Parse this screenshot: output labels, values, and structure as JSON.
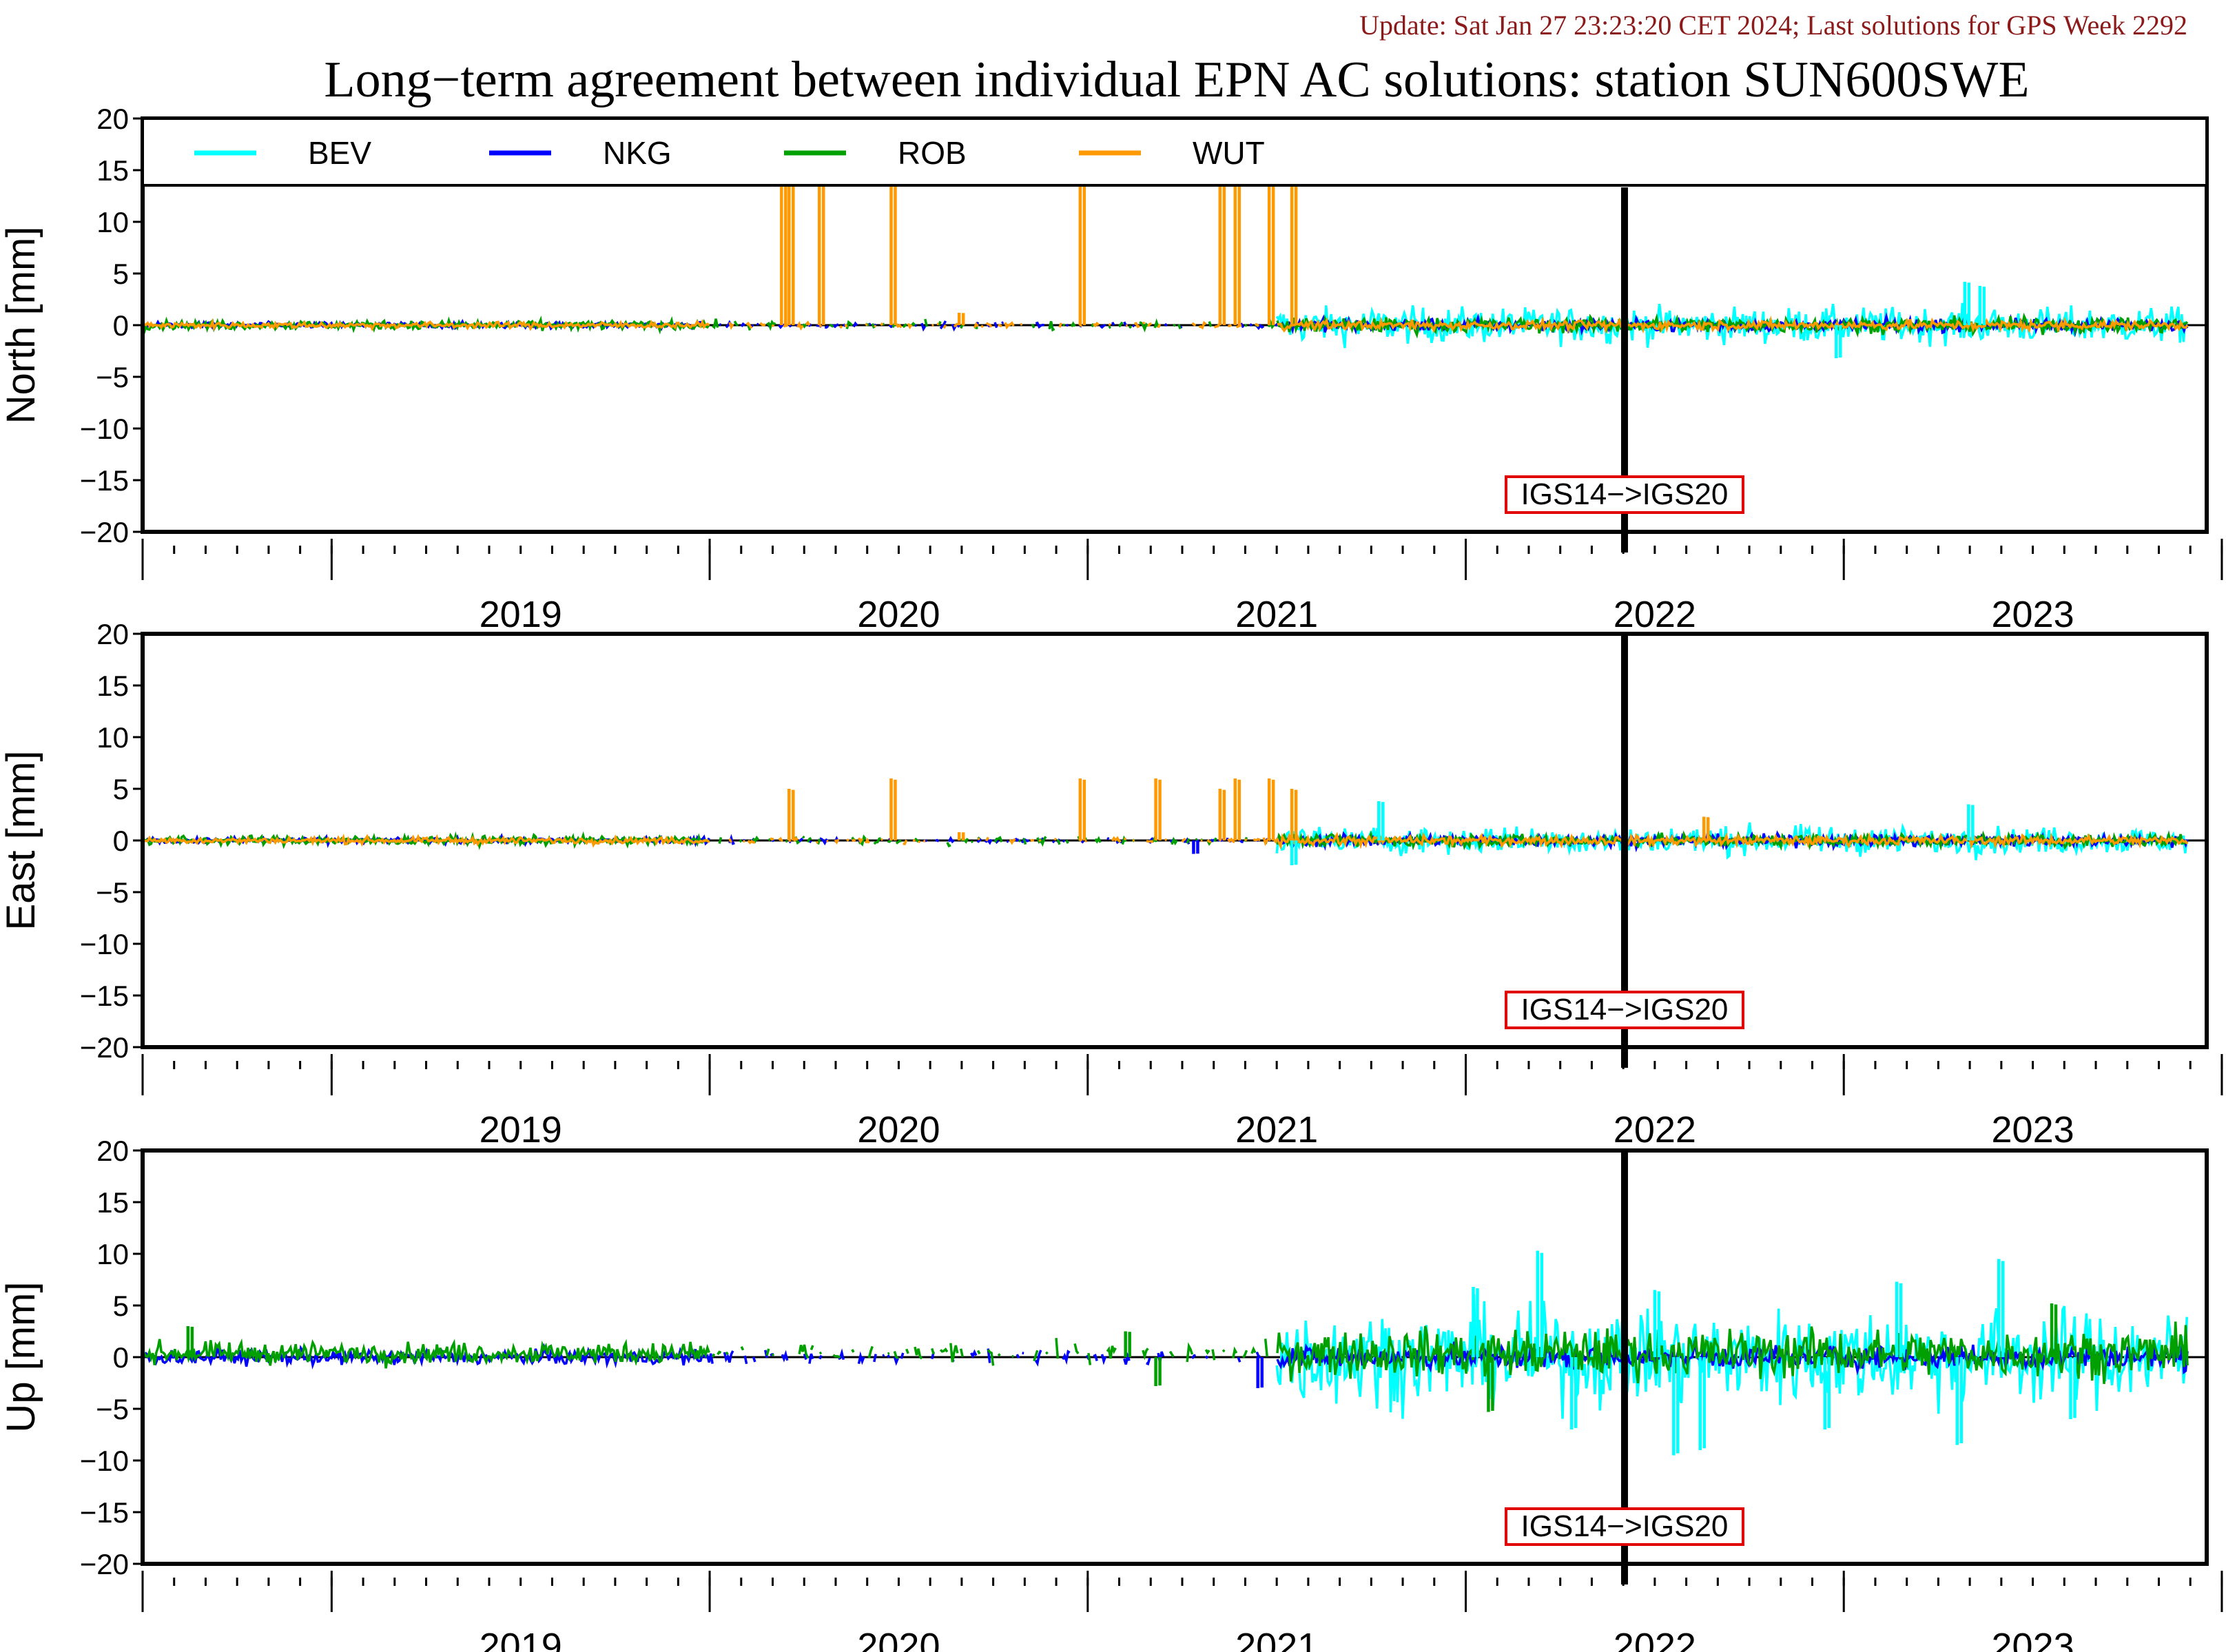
{
  "header": {
    "update_text": "Update: Sat Jan 27 23:23:20 CET 2024; Last solutions for GPS Week 2292",
    "title": "Long−term agreement between individual EPN AC solutions: station SUN600SWE"
  },
  "colors": {
    "update_text": "#8b1a1a",
    "BEV": "#00ffff",
    "NKG": "#0000ff",
    "ROB": "#00a000",
    "WUT": "#ff9900",
    "annotation_border": "#e00000"
  },
  "chart_data": {
    "type": "line",
    "x_range": [
      2018.5,
      2023.96
    ],
    "years": [
      "2019",
      "2020",
      "2021",
      "2022",
      "2023"
    ],
    "ylim": [
      -20,
      20
    ],
    "yticks": [
      "20",
      "15",
      "10",
      "5",
      "0",
      "−5",
      "−10",
      "−15",
      "−20"
    ],
    "legend": {
      "placement": "top (North panel)",
      "entries": [
        "BEV",
        "NKG",
        "ROB",
        "WUT"
      ]
    },
    "reference_frame_change": {
      "x": 2022.42,
      "label": "IGS14−>IGS20"
    },
    "series_spans": {
      "BEV": [
        2021.5,
        2023.91
      ],
      "NKG": [
        2018.5,
        2023.91
      ],
      "ROB": [
        2018.5,
        2023.91
      ],
      "WUT": [
        2018.5,
        2023.91
      ]
    },
    "panels": [
      {
        "ylabel": "North [mm]",
        "noise_amplitude_mm": {
          "before_2021.5": {
            "BEV": 0,
            "NKG": 0.2,
            "ROB": 0.3,
            "WUT": 0.2
          },
          "after_2021.5": {
            "BEV": 1.2,
            "NKG": 0.4,
            "ROB": 0.5,
            "WUT": 0.3
          }
        },
        "spikes": [
          {
            "series": "WUT",
            "x": 2020.19,
            "value": 20
          },
          {
            "series": "WUT",
            "x": 2020.21,
            "value": 20
          },
          {
            "series": "WUT",
            "x": 2020.29,
            "value": 20
          },
          {
            "series": "WUT",
            "x": 2020.48,
            "value": 20
          },
          {
            "series": "WUT",
            "x": 2020.66,
            "value": 1.2
          },
          {
            "series": "WUT",
            "x": 2020.98,
            "value": 20
          },
          {
            "series": "WUT",
            "x": 2021.35,
            "value": 20
          },
          {
            "series": "WUT",
            "x": 2021.39,
            "value": 20
          },
          {
            "series": "WUT",
            "x": 2021.48,
            "value": 20
          },
          {
            "series": "WUT",
            "x": 2021.54,
            "value": 20
          },
          {
            "series": "BEV",
            "x": 2023.32,
            "value": 4.2
          },
          {
            "series": "BEV",
            "x": 2023.36,
            "value": 3.8
          },
          {
            "series": "BEV",
            "x": 2022.98,
            "value": -3.2
          }
        ]
      },
      {
        "ylabel": "East [mm]",
        "noise_amplitude_mm": {
          "before_2021.5": {
            "BEV": 0,
            "NKG": 0.2,
            "ROB": 0.3,
            "WUT": 0.2
          },
          "after_2021.5": {
            "BEV": 0.9,
            "NKG": 0.4,
            "ROB": 0.4,
            "WUT": 0.3
          }
        },
        "spikes": [
          {
            "series": "WUT",
            "x": 2020.21,
            "value": 5
          },
          {
            "series": "WUT",
            "x": 2020.48,
            "value": 6
          },
          {
            "series": "WUT",
            "x": 2020.66,
            "value": 0.8
          },
          {
            "series": "WUT",
            "x": 2020.98,
            "value": 6
          },
          {
            "series": "WUT",
            "x": 2021.18,
            "value": 6
          },
          {
            "series": "WUT",
            "x": 2021.35,
            "value": 5
          },
          {
            "series": "WUT",
            "x": 2021.39,
            "value": 6
          },
          {
            "series": "WUT",
            "x": 2021.48,
            "value": 6
          },
          {
            "series": "WUT",
            "x": 2021.54,
            "value": 5
          },
          {
            "series": "NKG",
            "x": 2021.28,
            "value": -1.3
          },
          {
            "series": "BEV",
            "x": 2021.54,
            "value": -2.4
          },
          {
            "series": "BEV",
            "x": 2021.77,
            "value": 3.8
          },
          {
            "series": "WUT",
            "x": 2022.63,
            "value": 2.3
          },
          {
            "series": "BEV",
            "x": 2023.33,
            "value": 3.5
          }
        ]
      },
      {
        "ylabel": "Up [mm]",
        "noise_amplitude_mm": {
          "before_2021.5": {
            "BEV": 0,
            "NKG": 0.5,
            "ROB": 0.7,
            "WUT": 0
          },
          "after_2021.5": {
            "BEV": 3.2,
            "NKG": 0.8,
            "ROB": 1.6,
            "WUT": 0
          }
        },
        "spikes": [
          {
            "series": "ROB",
            "x": 2018.62,
            "value": 3
          },
          {
            "series": "ROB",
            "x": 2021.1,
            "value": 2.5
          },
          {
            "series": "ROB",
            "x": 2021.18,
            "value": -2.8
          },
          {
            "series": "NKG",
            "x": 2021.45,
            "value": -3
          },
          {
            "series": "BEV",
            "x": 2022.19,
            "value": 10.3
          },
          {
            "series": "BEV",
            "x": 2022.02,
            "value": 6.8
          },
          {
            "series": "ROB",
            "x": 2022.06,
            "value": -5.3
          },
          {
            "series": "BEV",
            "x": 2022.28,
            "value": -7
          },
          {
            "series": "BEV",
            "x": 2022.5,
            "value": 6.5
          },
          {
            "series": "BEV",
            "x": 2022.55,
            "value": -9.5
          },
          {
            "series": "BEV",
            "x": 2022.62,
            "value": -9
          },
          {
            "series": "BEV",
            "x": 2022.95,
            "value": -7
          },
          {
            "series": "BEV",
            "x": 2023.14,
            "value": 7.3
          },
          {
            "series": "BEV",
            "x": 2023.3,
            "value": -8.5
          },
          {
            "series": "BEV",
            "x": 2023.41,
            "value": 9.5
          },
          {
            "series": "ROB",
            "x": 2023.55,
            "value": 5.2
          },
          {
            "series": "BEV",
            "x": 2023.6,
            "value": -6
          }
        ]
      }
    ]
  }
}
